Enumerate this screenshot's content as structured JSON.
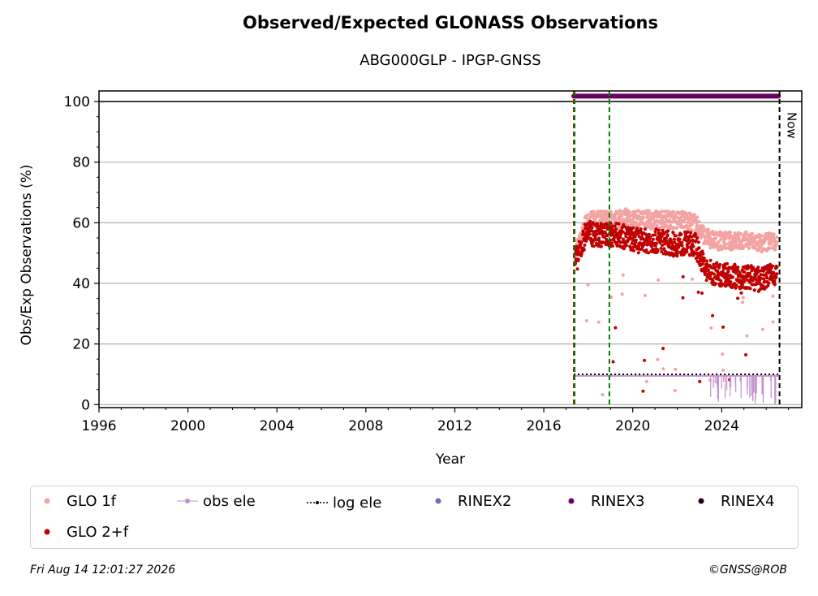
{
  "chart_data": {
    "type": "scatter",
    "title": "Observed/Expected GLONASS Observations",
    "subtitle": "ABG000GLP - IPGP-GNSS",
    "xlabel": "Year",
    "ylabel": "Obs/Exp Observations (%)",
    "xlim": [
      1996,
      2027.6
    ],
    "ylim": [
      -1,
      103.5
    ],
    "x_ticks": [
      "1996",
      "2000",
      "2004",
      "2008",
      "2012",
      "2016",
      "2020",
      "2024"
    ],
    "y_ticks": [
      "0",
      "20",
      "40",
      "60",
      "80",
      "100"
    ],
    "grid": "horizontal",
    "legend_position": "bottom",
    "series": [
      {
        "name": "GLO 1f",
        "color": "#f4a3a3",
        "marker": "dot",
        "points": [
          [
            2017.4,
            50
          ],
          [
            2017.6,
            53
          ],
          [
            2017.9,
            60
          ],
          [
            2018.3,
            61
          ],
          [
            2018.8,
            61
          ],
          [
            2019.3,
            61
          ],
          [
            2019.8,
            62
          ],
          [
            2020.3,
            61
          ],
          [
            2020.8,
            61
          ],
          [
            2021.3,
            61
          ],
          [
            2021.8,
            61
          ],
          [
            2022.3,
            61
          ],
          [
            2022.8,
            60
          ],
          [
            2023.3,
            55
          ],
          [
            2023.8,
            54
          ],
          [
            2024.3,
            54
          ],
          [
            2024.8,
            54
          ],
          [
            2025.3,
            54
          ],
          [
            2025.8,
            53
          ],
          [
            2026.2,
            54
          ],
          [
            2026.5,
            54
          ]
        ]
      },
      {
        "name": "GLO 2+f",
        "color": "#c00000",
        "marker": "dot",
        "points": [
          [
            2017.4,
            47
          ],
          [
            2017.6,
            50
          ],
          [
            2017.9,
            57
          ],
          [
            2018.3,
            56
          ],
          [
            2018.8,
            56
          ],
          [
            2019.3,
            56
          ],
          [
            2019.8,
            55
          ],
          [
            2020.3,
            54
          ],
          [
            2020.8,
            54
          ],
          [
            2021.3,
            54
          ],
          [
            2021.8,
            53
          ],
          [
            2022.3,
            53
          ],
          [
            2022.8,
            53
          ],
          [
            2023.3,
            44
          ],
          [
            2023.8,
            43
          ],
          [
            2024.3,
            43
          ],
          [
            2024.8,
            42
          ],
          [
            2025.3,
            42
          ],
          [
            2025.8,
            41
          ],
          [
            2026.2,
            43
          ],
          [
            2026.5,
            43
          ]
        ]
      },
      {
        "name": "obs ele",
        "color": "#c38fd0",
        "marker": "dot-line",
        "value": 9.5
      },
      {
        "name": "log ele",
        "color": "#000000",
        "marker": "dotted-line",
        "value": 10
      },
      {
        "name": "RINEX2",
        "color": "#7b68b8",
        "marker": "dot"
      },
      {
        "name": "RINEX3",
        "color": "#6b0063",
        "marker": "dot",
        "x_range": [
          2017.35,
          2026.55
        ],
        "value": 101.8
      },
      {
        "name": "RINEX4",
        "color": "#2a0020",
        "marker": "dot"
      }
    ],
    "vertical_lines": [
      {
        "x": 2017.35,
        "color": "#c00000",
        "style": "dashed"
      },
      {
        "x": 2017.35,
        "color": "#008000",
        "style": "dashed"
      },
      {
        "x": 2018.95,
        "color": "#008000",
        "style": "dashed"
      },
      {
        "x": 2026.6,
        "color": "#000000",
        "style": "dashed",
        "label": "Now"
      }
    ],
    "horizontal_lines": [
      {
        "y": 100,
        "color": "#000000",
        "style": "solid"
      }
    ],
    "annotations": [
      "Now"
    ],
    "footer_left": "Fri Aug 14 12:01:27 2026",
    "footer_right": "©GNSS@ROB"
  }
}
